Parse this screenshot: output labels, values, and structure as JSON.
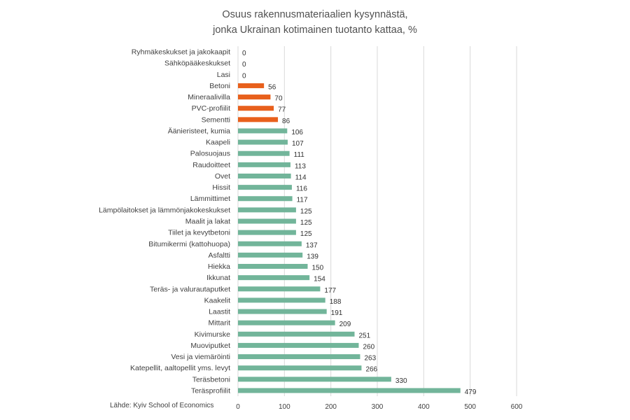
{
  "chart_data": {
    "type": "bar",
    "orientation": "horizontal",
    "title": [
      "Osuus rakennusmateriaalien kysynnästä,",
      "jonka Ukrainan kotimainen tuotanto kattaa, %"
    ],
    "xlabel": "",
    "ylabel": "",
    "xlim": [
      0,
      600
    ],
    "xticks": [
      0,
      100,
      200,
      300,
      400,
      500,
      600
    ],
    "grid": true,
    "source": "Lähde: Kyiv School of Economics",
    "colors": {
      "highlight": "#e8601c",
      "default": "#72b59a",
      "grid": "#d9d9d9"
    },
    "categories": [
      "Ryhmäkeskukset ja jakokaapit",
      "Sähköpääkeskukset",
      "Lasi",
      "Betoni",
      "Mineraalivilla",
      "PVC-profiilit",
      "Sementti",
      "Äänieristeet, kumia",
      "Kaapeli",
      "Palosuojaus",
      "Raudoitteet",
      "Ovet",
      "Hissit",
      "Lämmittimet",
      "Lämpölaitokset ja lämmönjakokeskukset",
      "Maalit ja lakat",
      "Tiilet ja kevytbetoni",
      "Bitumikermi (kattohuopa)",
      "Asfaltti",
      "Hiekka",
      "Ikkunat",
      "Teräs- ja valurautaputket",
      "Kaakelit",
      "Laastit",
      "Mittarit",
      "Kivimurske",
      "Muoviputket",
      "Vesi ja viemäröinti",
      "Katepellit, aaltopellit yms. levyt",
      "Teräsbetoni",
      "Teräsprofiilit"
    ],
    "values": [
      0,
      0,
      0,
      56,
      70,
      77,
      86,
      106,
      107,
      111,
      113,
      114,
      116,
      117,
      125,
      125,
      125,
      137,
      139,
      150,
      154,
      177,
      188,
      191,
      209,
      251,
      260,
      263,
      266,
      330,
      479
    ],
    "highlighted": [
      false,
      false,
      false,
      true,
      true,
      true,
      true,
      false,
      false,
      false,
      false,
      false,
      false,
      false,
      false,
      false,
      false,
      false,
      false,
      false,
      false,
      false,
      false,
      false,
      false,
      false,
      false,
      false,
      false,
      false,
      false
    ]
  }
}
